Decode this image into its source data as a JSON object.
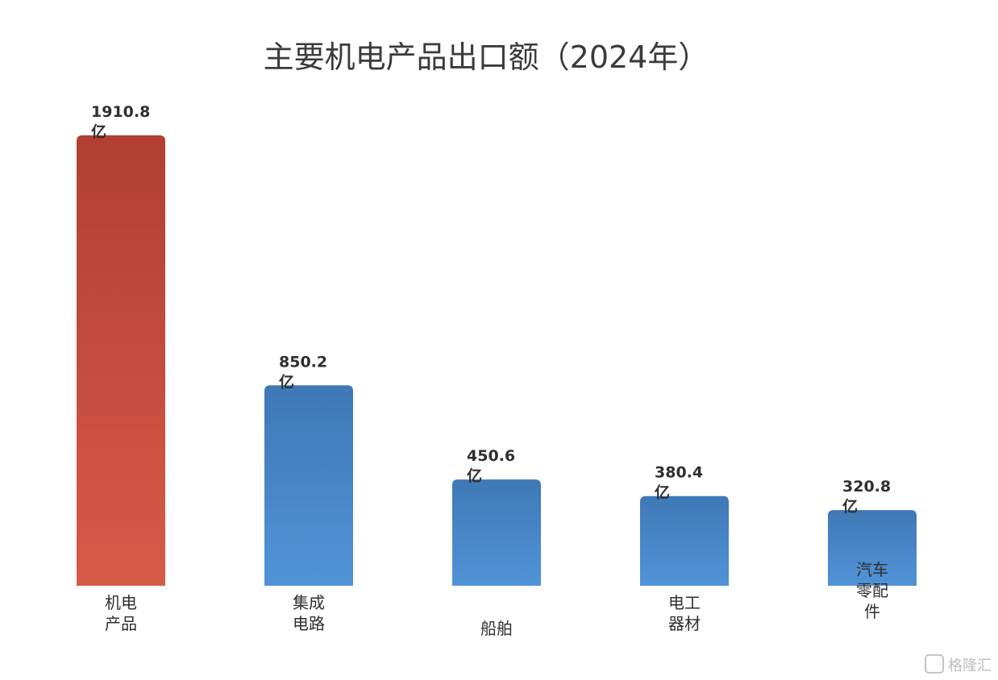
{
  "chart_data": {
    "type": "bar",
    "title": "主要机电产品出口额（2024年）",
    "unit": "亿",
    "categories": [
      [
        "机电",
        "产品"
      ],
      [
        "集成",
        "电路"
      ],
      [
        "船舶"
      ],
      [
        "电工",
        "器材"
      ],
      [
        "汽车",
        "零配",
        "件"
      ]
    ],
    "values": [
      1910.8,
      850.2,
      450.6,
      380.4,
      320.8
    ],
    "value_labels": [
      "1910.8",
      "850.2",
      "450.6",
      "380.4",
      "320.8"
    ],
    "colors": [
      "#c94a3b",
      "#4a86c5",
      "#4a86c5",
      "#4a86c5",
      "#4a86c5"
    ],
    "highlight_color": "#c94a3b",
    "bar_color": "#4a86c5",
    "xlabel": "",
    "ylabel": "",
    "legend": "none",
    "grid": false
  },
  "watermark": "格隆汇"
}
